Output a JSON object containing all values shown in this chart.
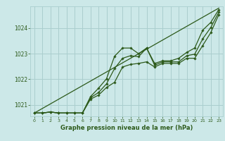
{
  "title": "Graphe pression niveau de la mer (hPa)",
  "bg_color": "#cce8e8",
  "grid_color": "#aacece",
  "line_color": "#2d5a1b",
  "xlim": [
    -0.5,
    23.5
  ],
  "ylim": [
    1020.55,
    1024.85
  ],
  "yticks": [
    1021,
    1022,
    1023,
    1024
  ],
  "xticks": [
    0,
    1,
    2,
    3,
    4,
    5,
    6,
    7,
    8,
    9,
    10,
    11,
    12,
    13,
    14,
    15,
    16,
    17,
    18,
    19,
    20,
    21,
    22,
    23
  ],
  "series": [
    [
      1020.68,
      1020.68,
      1020.72,
      1020.68,
      1020.68,
      1020.68,
      1020.68,
      1021.32,
      1021.65,
      1022.02,
      1022.9,
      1023.22,
      1023.22,
      1023.0,
      1023.22,
      1022.62,
      1022.72,
      1022.72,
      1022.82,
      1023.05,
      1023.22,
      1023.92,
      1024.22,
      1024.72
    ],
    [
      1020.68,
      1020.68,
      1020.72,
      1020.68,
      1020.68,
      1020.68,
      1020.68,
      1021.28,
      1021.48,
      1021.82,
      1022.42,
      1022.82,
      1022.92,
      1022.88,
      1023.22,
      1022.55,
      1022.68,
      1022.68,
      1022.68,
      1022.92,
      1022.98,
      1023.58,
      1024.02,
      1024.62
    ],
    [
      1020.68,
      1020.68,
      1020.72,
      1020.68,
      1020.68,
      1020.68,
      1020.68,
      1021.22,
      1021.38,
      1021.68,
      1021.88,
      1022.48,
      1022.58,
      1022.62,
      1022.68,
      1022.48,
      1022.62,
      1022.62,
      1022.62,
      1022.82,
      1022.82,
      1023.32,
      1023.82,
      1024.52
    ]
  ],
  "straight_line": [
    1020.68,
    1024.78
  ]
}
